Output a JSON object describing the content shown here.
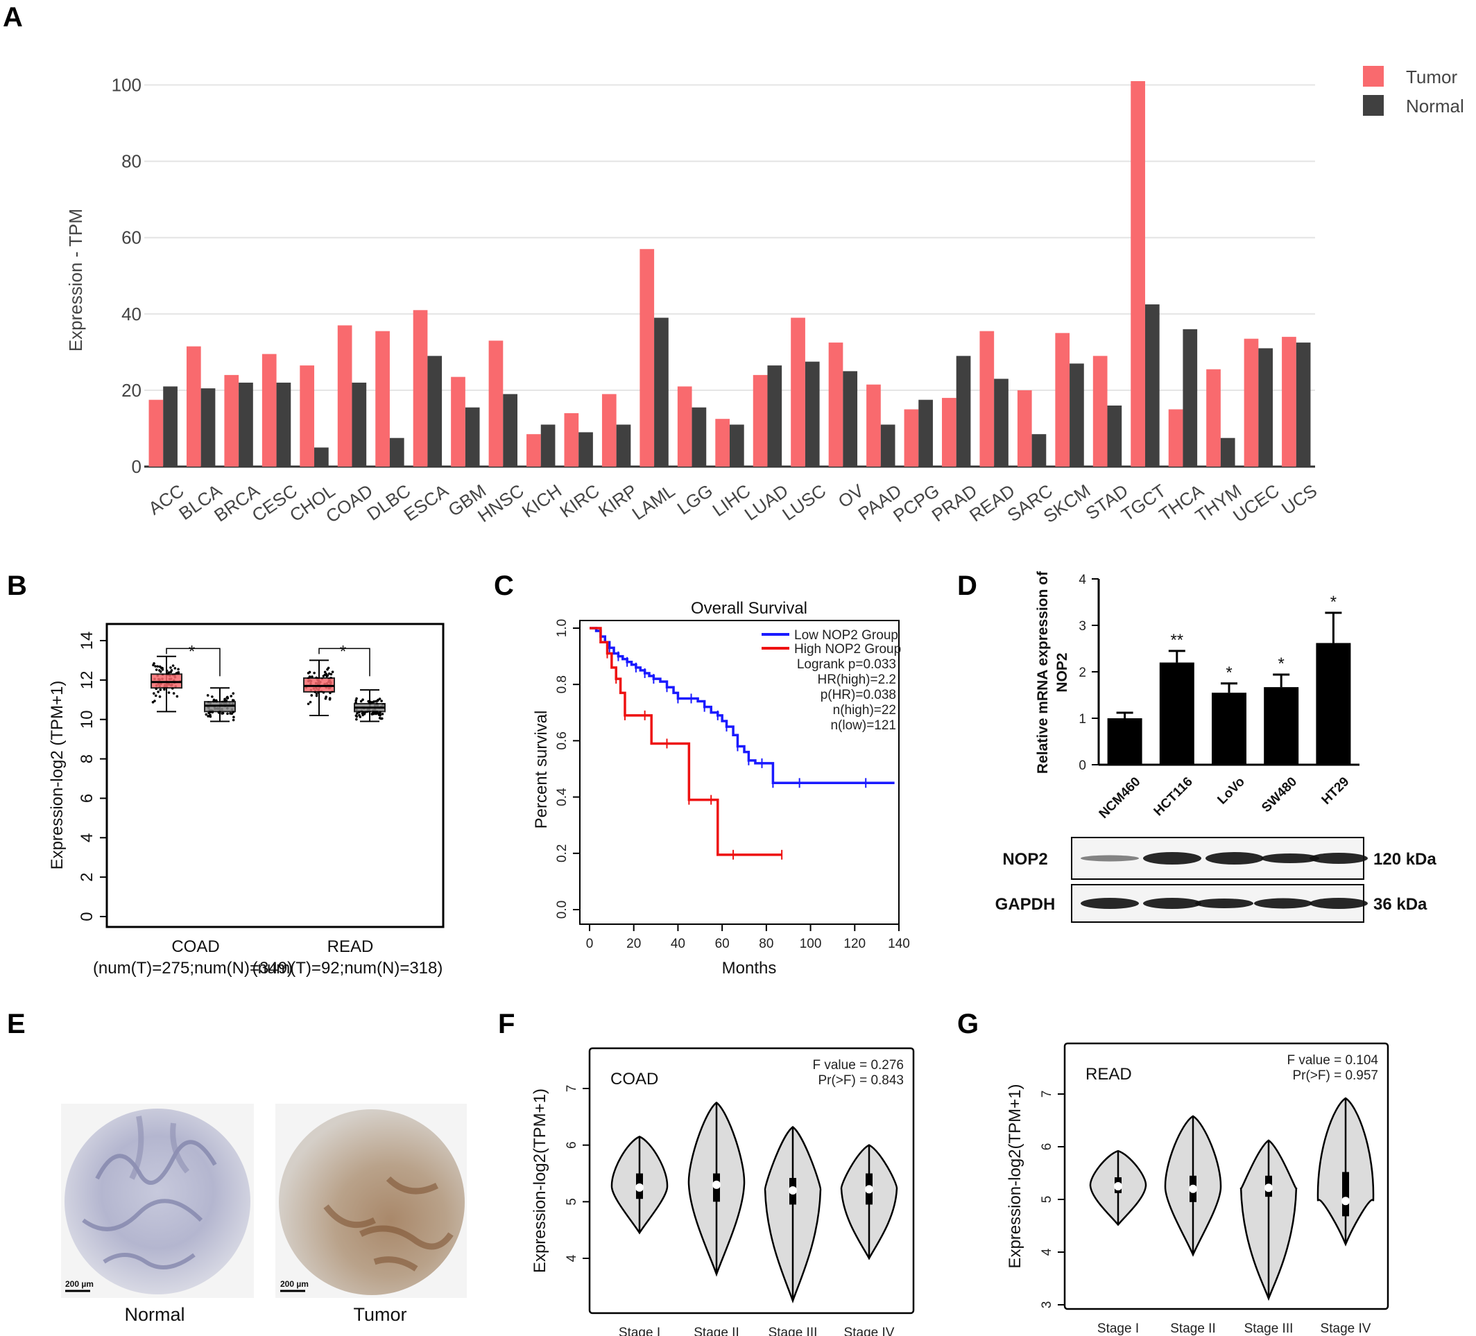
{
  "panels": {
    "A": "A",
    "B": "B",
    "C": "C",
    "D": "D",
    "E": "E",
    "F": "F",
    "G": "G"
  },
  "colors": {
    "tumor": "#f96a6e",
    "normal": "#404040",
    "low": "#1a1aff",
    "high": "#ee1111",
    "violin": "#dcdcdc"
  },
  "chart_data": [
    {
      "id": "A",
      "type": "bar",
      "ylabel": "Expression - TPM",
      "ylim": [
        0,
        105
      ],
      "yticks": [
        0,
        20,
        40,
        60,
        80,
        100
      ],
      "grid": true,
      "legend": "top-right",
      "categories": [
        "ACC",
        "BLCA",
        "BRCA",
        "CESC",
        "CHOL",
        "COAD",
        "DLBC",
        "ESCA",
        "GBM",
        "HNSC",
        "KICH",
        "KIRC",
        "KIRP",
        "LAML",
        "LGG",
        "LIHC",
        "LUAD",
        "LUSC",
        "OV",
        "PAAD",
        "PCPG",
        "PRAD",
        "READ",
        "SARC",
        "SKCM",
        "STAD",
        "TGCT",
        "THCA",
        "THYM",
        "UCEC",
        "UCS"
      ],
      "series": [
        {
          "name": "Tumor",
          "values": [
            17.5,
            31.5,
            24,
            29.5,
            26.5,
            37,
            35.5,
            41,
            23.5,
            33,
            8.5,
            14,
            19,
            57,
            21,
            12.5,
            24,
            39,
            32.5,
            21.5,
            15,
            18,
            35.5,
            20,
            35,
            29,
            101,
            15,
            25.5,
            33.5,
            34
          ]
        },
        {
          "name": "Normal",
          "values": [
            21,
            20.5,
            22,
            22,
            5,
            22,
            7.5,
            29,
            15.5,
            19,
            11,
            9,
            11,
            39,
            15.5,
            11,
            26.5,
            27.5,
            25,
            11,
            17.5,
            29,
            23,
            8.5,
            27,
            16,
            42.5,
            36,
            7.5,
            31,
            32.5
          ]
        }
      ]
    },
    {
      "id": "B",
      "type": "box",
      "ylabel": "Expression-log2 (TPM+1)",
      "ylim": [
        0,
        14
      ],
      "yticks": [
        0,
        2,
        4,
        6,
        8,
        10,
        12,
        14
      ],
      "groups": [
        {
          "name": "COAD",
          "sub": "(num(T)=275;num(N)=349)",
          "tumor": {
            "min": 10.4,
            "q1": 11.6,
            "median": 11.9,
            "q3": 12.3,
            "max": 13.2
          },
          "normal": {
            "min": 9.9,
            "q1": 10.4,
            "median": 10.7,
            "q3": 10.9,
            "max": 11.6
          },
          "sig": "*"
        },
        {
          "name": "READ",
          "sub": "(num(T)=92;num(N)=318)",
          "tumor": {
            "min": 10.2,
            "q1": 11.4,
            "median": 11.7,
            "q3": 12.1,
            "max": 13.0
          },
          "normal": {
            "min": 9.9,
            "q1": 10.4,
            "median": 10.6,
            "q3": 10.8,
            "max": 11.5
          },
          "sig": "*"
        }
      ]
    },
    {
      "id": "C",
      "type": "line",
      "title": "Overall Survival",
      "xlabel": "Months",
      "ylabel": "Percent survival",
      "xlim": [
        0,
        140
      ],
      "ylim": [
        0,
        1
      ],
      "xticks": [
        0,
        20,
        40,
        60,
        80,
        100,
        120,
        140
      ],
      "yticks": [
        "0.0",
        "0.2",
        "0.4",
        "0.6",
        "0.8",
        "1.0"
      ],
      "legend": "top-right",
      "series": [
        {
          "name": "Low NOP2 Group",
          "x": [
            0,
            3,
            5,
            7,
            9,
            11,
            13,
            15,
            17,
            19,
            21,
            23,
            25,
            27,
            29,
            32,
            35,
            38,
            40,
            43,
            46,
            49,
            52,
            55,
            58,
            60,
            62,
            65,
            67,
            70,
            72,
            75,
            78,
            80,
            83,
            88,
            95,
            110,
            125,
            138
          ],
          "y": [
            1.0,
            0.99,
            0.97,
            0.95,
            0.93,
            0.91,
            0.9,
            0.89,
            0.88,
            0.87,
            0.86,
            0.85,
            0.84,
            0.83,
            0.82,
            0.81,
            0.79,
            0.77,
            0.75,
            0.75,
            0.75,
            0.74,
            0.72,
            0.7,
            0.69,
            0.67,
            0.65,
            0.62,
            0.58,
            0.56,
            0.53,
            0.52,
            0.52,
            0.52,
            0.45,
            0.45,
            0.45,
            0.45,
            0.45,
            0.45
          ]
        },
        {
          "name": "High NOP2 Group",
          "x": [
            0,
            5,
            8,
            10,
            12,
            14,
            16,
            20,
            25,
            28,
            35,
            42,
            45,
            50,
            55,
            58,
            65,
            75,
            87
          ],
          "y": [
            1.0,
            0.95,
            0.91,
            0.86,
            0.82,
            0.77,
            0.69,
            0.69,
            0.69,
            0.59,
            0.59,
            0.59,
            0.39,
            0.39,
            0.39,
            0.195,
            0.195,
            0.195,
            0.195
          ]
        }
      ],
      "stats": [
        "Logrank p=0.033",
        "HR(high)=2.2",
        "p(HR)=0.038",
        "n(high)=22",
        "n(low)=121"
      ]
    },
    {
      "id": "D",
      "type": "bar",
      "ylabel": "Relative mRNA expression of NOP2",
      "ylim": [
        0,
        4
      ],
      "yticks": [
        0,
        1,
        2,
        3,
        4
      ],
      "categories": [
        "NCM460",
        "HCT116",
        "LoVo",
        "SW480",
        "HT29"
      ],
      "values": [
        1.0,
        2.2,
        1.55,
        1.67,
        2.62
      ],
      "errors": [
        0.12,
        0.25,
        0.2,
        0.27,
        0.65
      ],
      "sig": [
        "",
        "**",
        "*",
        "*",
        "*"
      ],
      "blot": {
        "rows": [
          "NOP2",
          "GAPDH"
        ],
        "sizes": [
          "120 kDa",
          "36 kDa"
        ]
      }
    },
    {
      "id": "F",
      "type": "violin",
      "ylabel": "Expression-log2(TPM+1)",
      "title": "COAD",
      "stats": [
        "F value = 0.276",
        "Pr(>F) = 0.843"
      ],
      "ylim": [
        3.2,
        7.5
      ],
      "yticks": [
        4,
        5,
        6,
        7
      ],
      "categories": [
        "Stage I",
        "Stage II",
        "Stage III",
        "Stage IV"
      ],
      "violins": [
        {
          "min": 4.45,
          "max": 6.15,
          "median": 5.25,
          "q1": 5.05,
          "q3": 5.5
        },
        {
          "min": 3.72,
          "max": 6.75,
          "median": 5.3,
          "q1": 5.0,
          "q3": 5.5
        },
        {
          "min": 3.25,
          "max": 6.32,
          "median": 5.2,
          "q1": 4.95,
          "q3": 5.42
        },
        {
          "min": 4.0,
          "max": 6.0,
          "median": 5.22,
          "q1": 4.95,
          "q3": 5.5
        }
      ]
    },
    {
      "id": "G",
      "type": "violin",
      "ylabel": "Expression-log2(TPM+1)",
      "title": "READ",
      "stats": [
        "F value = 0.104",
        "Pr(>F) = 0.957"
      ],
      "ylim": [
        2.9,
        7.4
      ],
      "yticks": [
        3,
        4,
        5,
        6,
        7
      ],
      "categories": [
        "Stage I",
        "Stage II",
        "Stage III",
        "Stage IV"
      ],
      "violins": [
        {
          "min": 4.52,
          "max": 5.92,
          "median": 5.25,
          "q1": 5.12,
          "q3": 5.42
        },
        {
          "min": 3.95,
          "max": 6.58,
          "median": 5.2,
          "q1": 4.95,
          "q3": 5.45
        },
        {
          "min": 3.12,
          "max": 6.12,
          "median": 5.22,
          "q1": 5.05,
          "q3": 5.45
        },
        {
          "min": 4.15,
          "max": 6.92,
          "median": 4.97,
          "q1": 4.68,
          "q3": 5.52
        }
      ]
    }
  ],
  "ihc": {
    "left": "Normal",
    "right": "Tumor",
    "scale": "200 µm"
  }
}
